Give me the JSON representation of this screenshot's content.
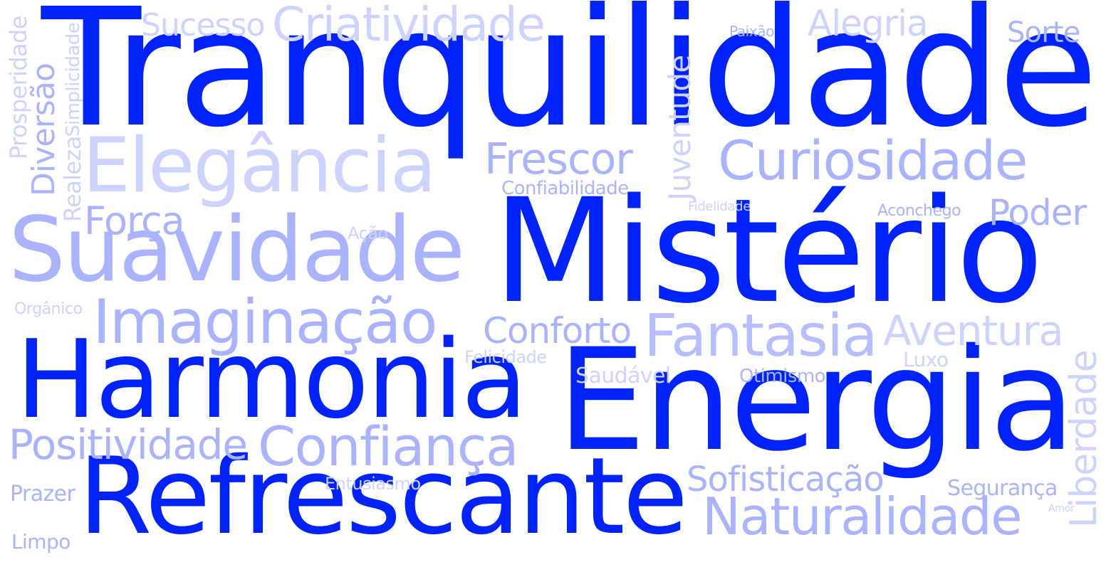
{
  "word_cloud": {
    "words": [
      {
        "text": "Tranquilidade",
        "color": "#0022ff"
      },
      {
        "text": "Mistério",
        "color": "#0022ff"
      },
      {
        "text": "Energia",
        "color": "#0022ff"
      },
      {
        "text": "Harmonia",
        "color": "#0022ff"
      },
      {
        "text": "Refrescante",
        "color": "#0022ff"
      },
      {
        "text": "Suavidade",
        "color": "#a9b3ff"
      },
      {
        "text": "Elegância",
        "color": "#cdd3ff"
      },
      {
        "text": "Imaginação",
        "color": "#a9b3ff"
      },
      {
        "text": "Fantasia",
        "color": "#b6beff"
      },
      {
        "text": "Confiança",
        "color": "#a9b3ff"
      },
      {
        "text": "Curiosidade",
        "color": "#a9b3ff"
      },
      {
        "text": "Naturalidade",
        "color": "#a9b3ff"
      },
      {
        "text": "Criatividade",
        "color": "#cdd3ff"
      },
      {
        "text": "Positividade",
        "color": "#a9b3ff"
      },
      {
        "text": "Frescor",
        "color": "#a9b3ff"
      },
      {
        "text": "Aventura",
        "color": "#cdd3ff"
      },
      {
        "text": "Força",
        "color": "#a9b3ff"
      },
      {
        "text": "Conforto",
        "color": "#a9b3ff"
      },
      {
        "text": "Sofisticação",
        "color": "#a9b3ff"
      },
      {
        "text": "Poder",
        "color": "#a9b3ff"
      },
      {
        "text": "Alegria",
        "color": "#cdd3ff"
      },
      {
        "text": "Sucesso",
        "color": "#cdd3ff"
      },
      {
        "text": "Sorte",
        "color": "#a9b3ff"
      },
      {
        "text": "Liberdade",
        "color": "#cdd3ff"
      },
      {
        "text": "Juventude",
        "color": "#cdd3ff"
      },
      {
        "text": "Diversão",
        "color": "#a9b3ff"
      },
      {
        "text": "Prosperidade",
        "color": "#cdd3ff"
      },
      {
        "text": "Simplicidade",
        "color": "#cdd3ff"
      },
      {
        "text": "Realeza",
        "color": "#cdd3ff"
      },
      {
        "text": "Confiabilidade",
        "color": "#a9b3ff"
      },
      {
        "text": "Fidelidade",
        "color": "#cdd3ff"
      },
      {
        "text": "Aconchego",
        "color": "#a9b3ff"
      },
      {
        "text": "Ação",
        "color": "#cdd3ff"
      },
      {
        "text": "Orgânico",
        "color": "#cdd3ff"
      },
      {
        "text": "Felicidade",
        "color": "#cdd3ff"
      },
      {
        "text": "Luxo",
        "color": "#cdd3ff"
      },
      {
        "text": "Saudável",
        "color": "#cdd3ff"
      },
      {
        "text": "Otimismo",
        "color": "#a9b3ff"
      },
      {
        "text": "Entusiasmo",
        "color": "#cdd3ff"
      },
      {
        "text": "Segurança",
        "color": "#a9b3ff"
      },
      {
        "text": "Prazer",
        "color": "#a9b3ff"
      },
      {
        "text": "Limpo",
        "color": "#a9b3ff"
      },
      {
        "text": "Paixão",
        "color": "#a9b3ff"
      },
      {
        "text": "Amor",
        "color": "#cdd3ff"
      }
    ]
  }
}
